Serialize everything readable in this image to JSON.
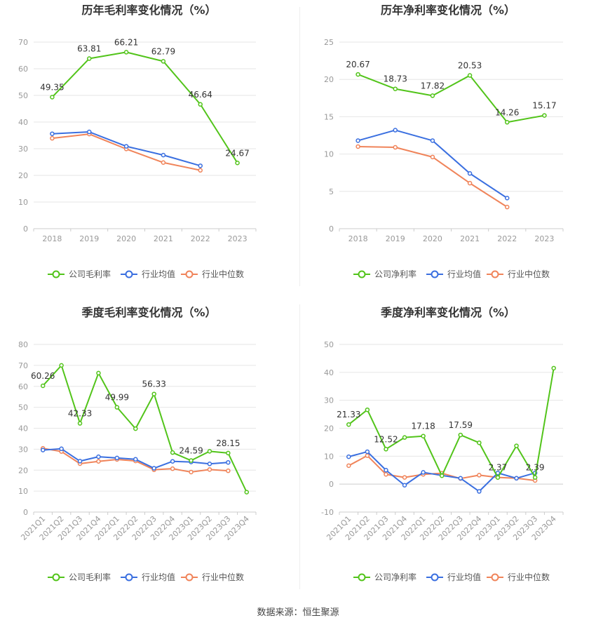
{
  "colors": {
    "company": "#52c41a",
    "industry_avg": "#3a6fe0",
    "industry_median": "#f0845a",
    "grid": "#e6e6e6",
    "axis_text": "#999999",
    "title": "#333333"
  },
  "source_text": "数据来源：恒生聚源",
  "chart_data": [
    {
      "id": "annual-gross",
      "type": "line",
      "title": "历年毛利率变化情况（%）",
      "categories": [
        "2018",
        "2019",
        "2020",
        "2021",
        "2022",
        "2023"
      ],
      "ylim": [
        0,
        70
      ],
      "yticks": [
        0,
        10,
        20,
        30,
        40,
        50,
        60,
        70
      ],
      "series": [
        {
          "name": "公司毛利率",
          "key": "company",
          "values": [
            49.35,
            63.81,
            66.21,
            62.79,
            46.64,
            24.67
          ],
          "labels": [
            0,
            1,
            2,
            3,
            4,
            5
          ]
        },
        {
          "name": "行业均值",
          "key": "industry_avg",
          "values": [
            35.6,
            36.3,
            30.9,
            27.6,
            23.6,
            null
          ],
          "labels": []
        },
        {
          "name": "行业中位数",
          "key": "industry_median",
          "values": [
            33.9,
            35.5,
            29.9,
            24.8,
            21.9,
            null
          ],
          "labels": []
        }
      ],
      "legend": [
        "公司毛利率",
        "行业均值",
        "行业中位数"
      ],
      "rotated_ticks": false
    },
    {
      "id": "annual-net",
      "type": "line",
      "title": "历年净利率变化情况（%）",
      "categories": [
        "2018",
        "2019",
        "2020",
        "2021",
        "2022",
        "2023"
      ],
      "ylim": [
        0,
        25
      ],
      "yticks": [
        0,
        5,
        10,
        15,
        20,
        25
      ],
      "series": [
        {
          "name": "公司净利率",
          "key": "company",
          "values": [
            20.67,
            18.73,
            17.82,
            20.53,
            14.26,
            15.17
          ],
          "labels": [
            0,
            1,
            2,
            3,
            4,
            5
          ]
        },
        {
          "name": "行业均值",
          "key": "industry_avg",
          "values": [
            11.8,
            13.2,
            11.8,
            7.4,
            4.1,
            null
          ],
          "labels": []
        },
        {
          "name": "行业中位数",
          "key": "industry_median",
          "values": [
            11.0,
            10.9,
            9.6,
            6.1,
            2.9,
            null
          ],
          "labels": []
        }
      ],
      "legend": [
        "公司净利率",
        "行业均值",
        "行业中位数"
      ],
      "rotated_ticks": false
    },
    {
      "id": "quarterly-gross",
      "type": "line",
      "title": "季度毛利率变化情况（%）",
      "categories": [
        "2021Q1",
        "2021Q2",
        "2021Q3",
        "2021Q4",
        "2022Q1",
        "2022Q2",
        "2022Q3",
        "2022Q4",
        "2023Q1",
        "2023Q2",
        "2023Q3",
        "2023Q4"
      ],
      "ylim": [
        0,
        80
      ],
      "yticks": [
        0,
        10,
        20,
        30,
        40,
        50,
        60,
        70,
        80
      ],
      "series": [
        {
          "name": "公司毛利率",
          "key": "company",
          "values": [
            60.26,
            70.0,
            42.33,
            66.3,
            49.99,
            39.8,
            56.33,
            28.4,
            24.59,
            29.0,
            28.15,
            9.5
          ],
          "labels": [
            0,
            2,
            4,
            6,
            8,
            10
          ]
        },
        {
          "name": "行业均值",
          "key": "industry_avg",
          "values": [
            29.6,
            30.2,
            24.3,
            26.4,
            25.8,
            25.2,
            20.9,
            24.2,
            23.9,
            23.0,
            23.7,
            null
          ],
          "labels": []
        },
        {
          "name": "行业中位数",
          "key": "industry_median",
          "values": [
            30.4,
            28.9,
            23.1,
            24.2,
            25.1,
            24.4,
            20.2,
            20.7,
            19.1,
            20.3,
            19.7,
            null
          ],
          "labels": []
        }
      ],
      "legend": [
        "公司毛利率",
        "行业均值",
        "行业中位数"
      ],
      "rotated_ticks": true
    },
    {
      "id": "quarterly-net",
      "type": "line",
      "title": "季度净利率变化情况（%）",
      "categories": [
        "2021Q1",
        "2021Q2",
        "2021Q3",
        "2021Q4",
        "2022Q1",
        "2022Q2",
        "2022Q3",
        "2022Q4",
        "2023Q1",
        "2023Q2",
        "2023Q3",
        "2023Q4"
      ],
      "ylim": [
        -10,
        50
      ],
      "yticks": [
        -10,
        0,
        10,
        20,
        30,
        40,
        50
      ],
      "series": [
        {
          "name": "公司净利率",
          "key": "company",
          "values": [
            21.33,
            26.6,
            12.52,
            16.7,
            17.18,
            3.0,
            17.59,
            14.8,
            2.37,
            13.7,
            2.39,
            41.5
          ],
          "labels": [
            0,
            2,
            4,
            6,
            8,
            10
          ]
        },
        {
          "name": "行业均值",
          "key": "industry_avg",
          "values": [
            9.8,
            11.6,
            5.0,
            -0.4,
            4.2,
            3.1,
            2.1,
            -2.6,
            4.0,
            2.1,
            4.0,
            null
          ],
          "labels": []
        },
        {
          "name": "行业中位数",
          "key": "industry_median",
          "values": [
            6.6,
            10.2,
            3.5,
            2.4,
            3.5,
            3.9,
            2.0,
            3.2,
            2.4,
            2.1,
            1.3,
            null
          ],
          "labels": []
        }
      ],
      "legend": [
        "公司净利率",
        "行业均值",
        "行业中位数"
      ],
      "rotated_ticks": true
    }
  ]
}
